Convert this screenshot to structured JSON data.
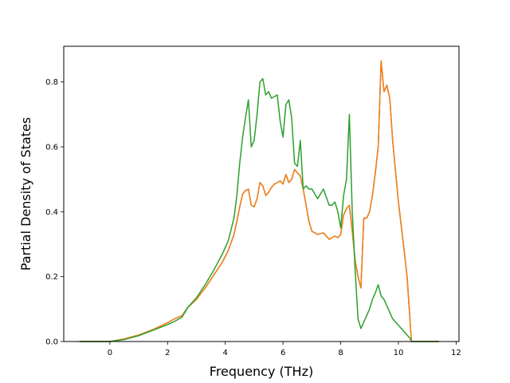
{
  "chart_data": {
    "type": "line",
    "title": "",
    "xlabel": "Frequency (THz)",
    "ylabel": "Partial Density of States",
    "xlim": [
      -1.6,
      12.1
    ],
    "ylim": [
      0.0,
      0.91
    ],
    "x_ticks": [
      0,
      2,
      4,
      6,
      8,
      10,
      12
    ],
    "x_tick_labels": [
      "0",
      "2",
      "4",
      "6",
      "8",
      "10",
      "12"
    ],
    "y_ticks": [
      0.0,
      0.2,
      0.4,
      0.6,
      0.8
    ],
    "y_tick_labels": [
      "0.0",
      "0.2",
      "0.4",
      "0.6",
      "0.8"
    ],
    "grid": false,
    "legend": null,
    "series": [
      {
        "color": "#1f77b4",
        "x": [
          -1.05,
          0,
          0.5,
          1.0,
          1.5,
          2.0,
          2.2,
          2.5,
          2.7,
          3.0,
          3.3,
          3.6,
          3.9,
          4.1,
          4.3,
          4.4,
          4.5,
          4.6,
          4.7,
          4.8,
          4.9,
          5.0,
          5.1,
          5.2,
          5.3,
          5.4,
          5.5,
          5.6,
          5.7,
          5.8,
          5.9,
          6.0,
          6.1,
          6.2,
          6.3,
          6.4,
          6.5,
          6.6,
          6.7,
          6.8,
          6.9,
          7.0,
          7.2,
          7.4,
          7.6,
          7.7,
          7.8,
          7.9,
          8.0,
          8.1,
          8.2,
          8.3,
          8.4,
          8.5,
          8.6,
          8.7,
          8.8,
          8.9,
          9.0,
          9.1,
          9.2,
          9.3,
          9.4,
          9.5,
          9.6,
          9.7,
          9.8,
          10.0,
          10.2,
          10.3,
          10.4,
          10.45,
          10.6,
          11.4
        ],
        "values": [
          0.0,
          0.0,
          0.008,
          0.02,
          0.037,
          0.058,
          0.068,
          0.08,
          0.105,
          0.13,
          0.165,
          0.205,
          0.245,
          0.28,
          0.33,
          0.37,
          0.415,
          0.455,
          0.465,
          0.47,
          0.42,
          0.415,
          0.44,
          0.49,
          0.48,
          0.45,
          0.46,
          0.475,
          0.485,
          0.49,
          0.495,
          0.485,
          0.515,
          0.49,
          0.5,
          0.53,
          0.52,
          0.51,
          0.47,
          0.42,
          0.37,
          0.34,
          0.33,
          0.335,
          0.315,
          0.32,
          0.325,
          0.32,
          0.33,
          0.39,
          0.41,
          0.42,
          0.34,
          0.25,
          0.2,
          0.165,
          0.38,
          0.38,
          0.4,
          0.45,
          0.52,
          0.6,
          0.865,
          0.77,
          0.79,
          0.75,
          0.62,
          0.43,
          0.28,
          0.2,
          0.07,
          0.0,
          0.0,
          0.0
        ]
      },
      {
        "color": "#ff7f0e",
        "x": [
          -1.05,
          0,
          0.5,
          1.0,
          1.5,
          2.0,
          2.2,
          2.5,
          2.7,
          3.0,
          3.3,
          3.6,
          3.9,
          4.1,
          4.3,
          4.4,
          4.5,
          4.6,
          4.7,
          4.8,
          4.9,
          5.0,
          5.1,
          5.2,
          5.3,
          5.4,
          5.5,
          5.6,
          5.7,
          5.8,
          5.9,
          6.0,
          6.1,
          6.2,
          6.3,
          6.4,
          6.5,
          6.6,
          6.7,
          6.8,
          6.9,
          7.0,
          7.2,
          7.4,
          7.6,
          7.7,
          7.8,
          7.9,
          8.0,
          8.1,
          8.2,
          8.3,
          8.4,
          8.5,
          8.6,
          8.7,
          8.8,
          8.9,
          9.0,
          9.1,
          9.2,
          9.3,
          9.4,
          9.5,
          9.6,
          9.7,
          9.8,
          10.0,
          10.2,
          10.3,
          10.4,
          10.45,
          10.6,
          11.4
        ],
        "values": [
          0.0,
          0.0,
          0.008,
          0.02,
          0.037,
          0.058,
          0.068,
          0.08,
          0.105,
          0.13,
          0.165,
          0.205,
          0.245,
          0.28,
          0.33,
          0.37,
          0.415,
          0.455,
          0.465,
          0.47,
          0.42,
          0.415,
          0.44,
          0.49,
          0.48,
          0.45,
          0.46,
          0.475,
          0.485,
          0.49,
          0.495,
          0.485,
          0.515,
          0.49,
          0.5,
          0.53,
          0.52,
          0.51,
          0.47,
          0.42,
          0.37,
          0.34,
          0.33,
          0.335,
          0.315,
          0.32,
          0.325,
          0.32,
          0.33,
          0.39,
          0.41,
          0.42,
          0.34,
          0.25,
          0.2,
          0.165,
          0.38,
          0.38,
          0.4,
          0.45,
          0.52,
          0.6,
          0.865,
          0.77,
          0.79,
          0.75,
          0.62,
          0.43,
          0.28,
          0.2,
          0.07,
          0.0,
          0.0,
          0.0
        ]
      },
      {
        "color": "#2ca02c",
        "x": [
          -1.05,
          0,
          0.5,
          1.0,
          1.5,
          2.0,
          2.2,
          2.5,
          2.7,
          3.0,
          3.3,
          3.6,
          3.9,
          4.1,
          4.3,
          4.4,
          4.5,
          4.6,
          4.7,
          4.8,
          4.9,
          5.0,
          5.1,
          5.2,
          5.3,
          5.4,
          5.5,
          5.6,
          5.7,
          5.8,
          5.9,
          6.0,
          6.1,
          6.2,
          6.3,
          6.4,
          6.5,
          6.6,
          6.7,
          6.8,
          6.9,
          7.0,
          7.2,
          7.4,
          7.6,
          7.7,
          7.8,
          7.9,
          8.0,
          8.1,
          8.2,
          8.3,
          8.4,
          8.5,
          8.6,
          8.7,
          8.8,
          8.9,
          9.0,
          9.1,
          9.2,
          9.3,
          9.4,
          9.5,
          9.6,
          9.7,
          9.8,
          10.0,
          10.2,
          10.3,
          10.4,
          10.45,
          10.6,
          11.4
        ],
        "values": [
          0.0,
          0.0,
          0.006,
          0.018,
          0.035,
          0.052,
          0.06,
          0.075,
          0.105,
          0.135,
          0.175,
          0.22,
          0.27,
          0.31,
          0.38,
          0.45,
          0.55,
          0.63,
          0.69,
          0.745,
          0.6,
          0.62,
          0.7,
          0.8,
          0.81,
          0.76,
          0.77,
          0.75,
          0.755,
          0.76,
          0.68,
          0.63,
          0.73,
          0.745,
          0.69,
          0.55,
          0.54,
          0.62,
          0.47,
          0.48,
          0.47,
          0.47,
          0.44,
          0.47,
          0.42,
          0.42,
          0.43,
          0.4,
          0.35,
          0.45,
          0.5,
          0.7,
          0.4,
          0.22,
          0.07,
          0.04,
          0.06,
          0.08,
          0.1,
          0.13,
          0.15,
          0.175,
          0.14,
          0.13,
          0.11,
          0.09,
          0.07,
          0.05,
          0.03,
          0.02,
          0.01,
          0.0,
          0.0,
          0.0
        ]
      }
    ]
  }
}
